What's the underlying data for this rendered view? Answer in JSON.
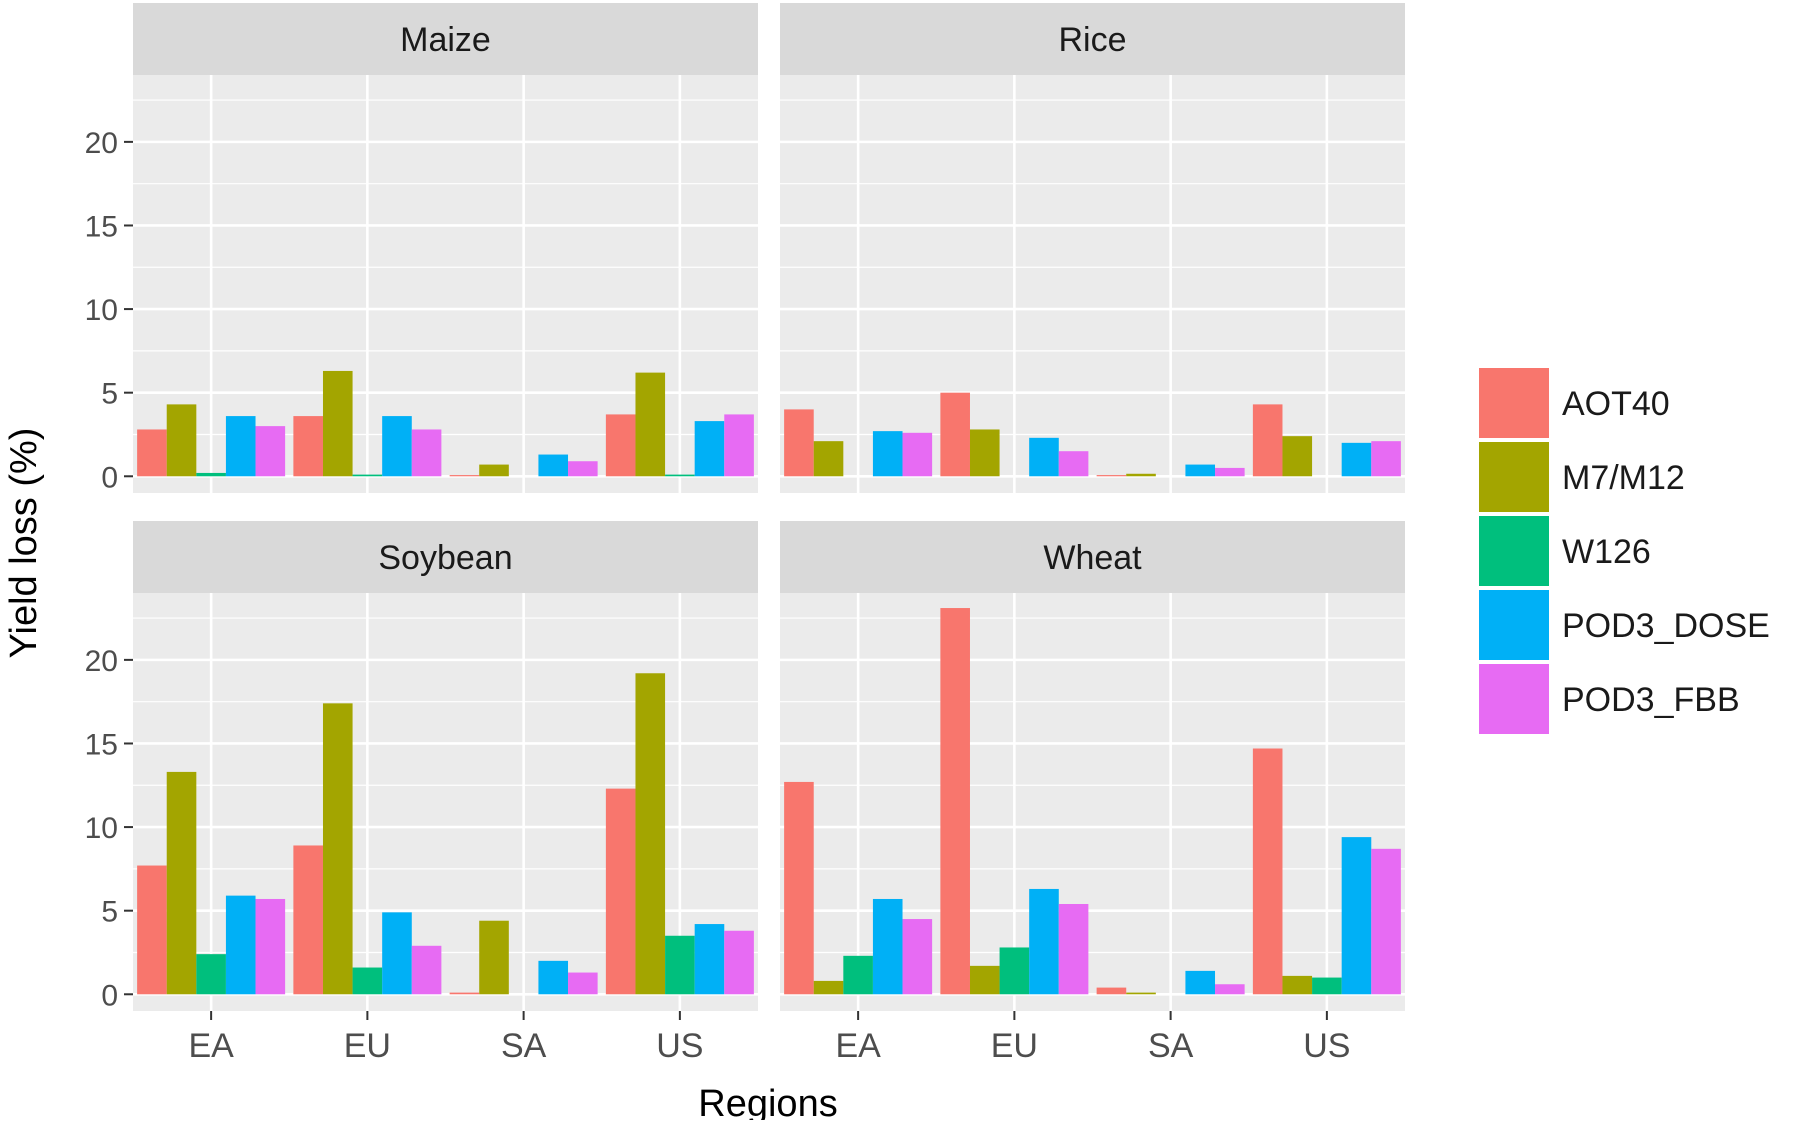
{
  "chart_data": {
    "type": "bar",
    "layout": "facet-grid-2x2",
    "xlabel": "Regions",
    "ylabel": "Yield loss (%)",
    "ylim": [
      -1,
      24
    ],
    "yticks": [
      0,
      5,
      10,
      15,
      20
    ],
    "ytick_labels": [
      "0",
      "5",
      "10",
      "15",
      "20"
    ],
    "grid": true,
    "legend_position": "right",
    "categories": [
      "EA",
      "EU",
      "SA",
      "US"
    ],
    "series_names": [
      "AOT40",
      "M7/M12",
      "W126",
      "POD3_DOSE",
      "POD3_FBB"
    ],
    "colors": {
      "AOT40": "#F8766D",
      "M7/M12": "#A3A500",
      "W126": "#00BF7D",
      "POD3_DOSE": "#00B0F6",
      "POD3_FBB": "#E76BF3",
      "panel_bg": "#EBEBEB",
      "strip_bg": "#D9D9D9",
      "grid": "#FFFFFF",
      "text": "#1A1A1A",
      "tick_text": "#4D4D4D"
    },
    "facets": [
      {
        "title": "Maize",
        "series": [
          {
            "name": "AOT40",
            "values": [
              2.8,
              3.6,
              0.05,
              3.7
            ]
          },
          {
            "name": "M7/M12",
            "values": [
              4.3,
              6.3,
              0.7,
              6.2
            ]
          },
          {
            "name": "W126",
            "values": [
              0.2,
              0.1,
              0.0,
              0.1
            ]
          },
          {
            "name": "POD3_DOSE",
            "values": [
              3.6,
              3.6,
              1.3,
              3.3
            ]
          },
          {
            "name": "POD3_FBB",
            "values": [
              3.0,
              2.8,
              0.9,
              3.7
            ]
          }
        ]
      },
      {
        "title": "Rice",
        "series": [
          {
            "name": "AOT40",
            "values": [
              4.0,
              5.0,
              0.05,
              4.3
            ]
          },
          {
            "name": "M7/M12",
            "values": [
              2.1,
              2.8,
              0.15,
              2.4
            ]
          },
          {
            "name": "W126",
            "values": [
              0.0,
              0.0,
              0.0,
              0.0
            ]
          },
          {
            "name": "POD3_DOSE",
            "values": [
              2.7,
              2.3,
              0.7,
              2.0
            ]
          },
          {
            "name": "POD3_FBB",
            "values": [
              2.6,
              1.5,
              0.5,
              2.1
            ]
          }
        ]
      },
      {
        "title": "Soybean",
        "series": [
          {
            "name": "AOT40",
            "values": [
              7.7,
              8.9,
              0.1,
              12.3
            ]
          },
          {
            "name": "M7/M12",
            "values": [
              13.3,
              17.4,
              4.4,
              19.2
            ]
          },
          {
            "name": "W126",
            "values": [
              2.4,
              1.6,
              0.0,
              3.5
            ]
          },
          {
            "name": "POD3_DOSE",
            "values": [
              5.9,
              4.9,
              2.0,
              4.2
            ]
          },
          {
            "name": "POD3_FBB",
            "values": [
              5.7,
              2.9,
              1.3,
              3.8
            ]
          }
        ]
      },
      {
        "title": "Wheat",
        "series": [
          {
            "name": "AOT40",
            "values": [
              12.7,
              23.1,
              0.4,
              14.7
            ]
          },
          {
            "name": "M7/M12",
            "values": [
              0.8,
              1.7,
              0.1,
              1.1
            ]
          },
          {
            "name": "W126",
            "values": [
              2.3,
              2.8,
              0.0,
              1.0
            ]
          },
          {
            "name": "POD3_DOSE",
            "values": [
              5.7,
              6.3,
              1.4,
              9.4
            ]
          },
          {
            "name": "POD3_FBB",
            "values": [
              4.5,
              5.4,
              0.6,
              8.7
            ]
          }
        ]
      }
    ]
  }
}
